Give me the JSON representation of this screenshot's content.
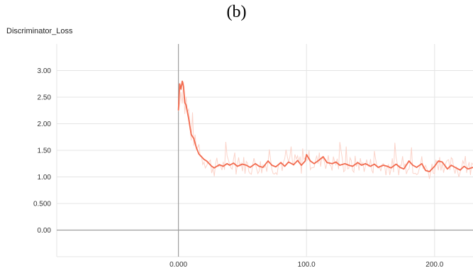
{
  "panel_label": "(b)",
  "chart_data": {
    "type": "line",
    "title": "Discriminator_Loss",
    "xlabel": "",
    "ylabel": "",
    "xlim": [
      -95,
      230
    ],
    "ylim": [
      -0.5,
      3.5
    ],
    "x_ticks": [
      0,
      100,
      200
    ],
    "x_tick_labels": [
      "0.000",
      "100.0",
      "200.0"
    ],
    "y_ticks": [
      0,
      0.5,
      1.0,
      1.5,
      2.0,
      2.5,
      3.0
    ],
    "y_tick_labels": [
      "0.00",
      "0.500",
      "1.00",
      "1.50",
      "2.00",
      "2.50",
      "3.00"
    ],
    "grid": true,
    "colors": {
      "smoothed": "#f26b4f",
      "raw": "#fbd3c9",
      "axis": "#9e9e9e",
      "grid": "#e4e4e4"
    },
    "series": [
      {
        "x": [
          0,
          1,
          2,
          3,
          4,
          5,
          6,
          8,
          10,
          12,
          14,
          16,
          18,
          20,
          22,
          24,
          26,
          28,
          30,
          32,
          35,
          38,
          40,
          43,
          46,
          50,
          53,
          56,
          60,
          63,
          66,
          70,
          73,
          76,
          80,
          83,
          86,
          90,
          93,
          96,
          99,
          100,
          103,
          106,
          110,
          113,
          116,
          120,
          123,
          126,
          130,
          133,
          136,
          140,
          143,
          146,
          150,
          153,
          156,
          160,
          163,
          166,
          170,
          173,
          176,
          180,
          183,
          186,
          190,
          193,
          196,
          200,
          203,
          206,
          210,
          213,
          216,
          220,
          223,
          226,
          230
        ],
        "y": [
          2.25,
          2.75,
          2.65,
          2.8,
          2.7,
          2.4,
          2.35,
          2.1,
          1.8,
          1.72,
          1.55,
          1.43,
          1.38,
          1.33,
          1.3,
          1.25,
          1.2,
          1.17,
          1.2,
          1.23,
          1.2,
          1.25,
          1.22,
          1.26,
          1.2,
          1.24,
          1.22,
          1.18,
          1.25,
          1.2,
          1.18,
          1.3,
          1.22,
          1.19,
          1.27,
          1.2,
          1.28,
          1.23,
          1.31,
          1.22,
          1.3,
          1.42,
          1.3,
          1.25,
          1.32,
          1.38,
          1.27,
          1.25,
          1.28,
          1.22,
          1.25,
          1.22,
          1.2,
          1.27,
          1.22,
          1.25,
          1.2,
          1.24,
          1.18,
          1.22,
          1.2,
          1.17,
          1.24,
          1.18,
          1.15,
          1.3,
          1.22,
          1.18,
          1.25,
          1.12,
          1.1,
          1.2,
          1.3,
          1.28,
          1.15,
          1.22,
          1.18,
          1.13,
          1.2,
          1.15,
          1.18
        ]
      }
    ]
  }
}
